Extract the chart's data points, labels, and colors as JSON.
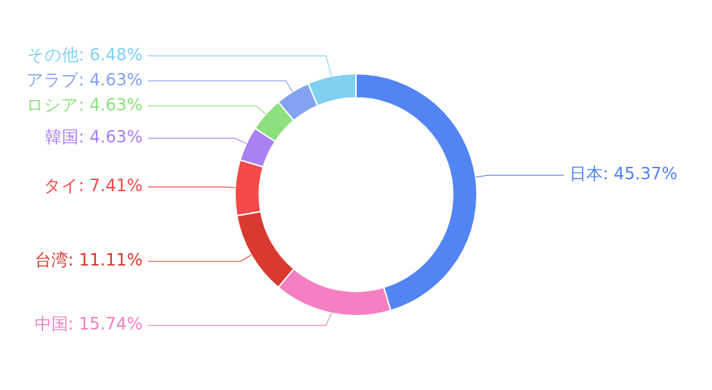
{
  "chart_data": {
    "type": "donut",
    "categories": [
      "日本",
      "中国",
      "台湾",
      "タイ",
      "韓国",
      "ロシア",
      "アラブ",
      "その他"
    ],
    "values": [
      45.37,
      15.74,
      11.11,
      7.41,
      4.63,
      4.63,
      4.63,
      6.48
    ],
    "value_labels": [
      "45.37%",
      "15.74%",
      "11.11%",
      "7.41%",
      "4.63%",
      "4.63%",
      "4.63%",
      "6.48%"
    ],
    "colors": [
      "#5384f3",
      "#f57fc3",
      "#d9392f",
      "#f44a4a",
      "#aa80f5",
      "#8ee07e",
      "#84a2f0",
      "#80d1f1"
    ],
    "legend": false
  }
}
